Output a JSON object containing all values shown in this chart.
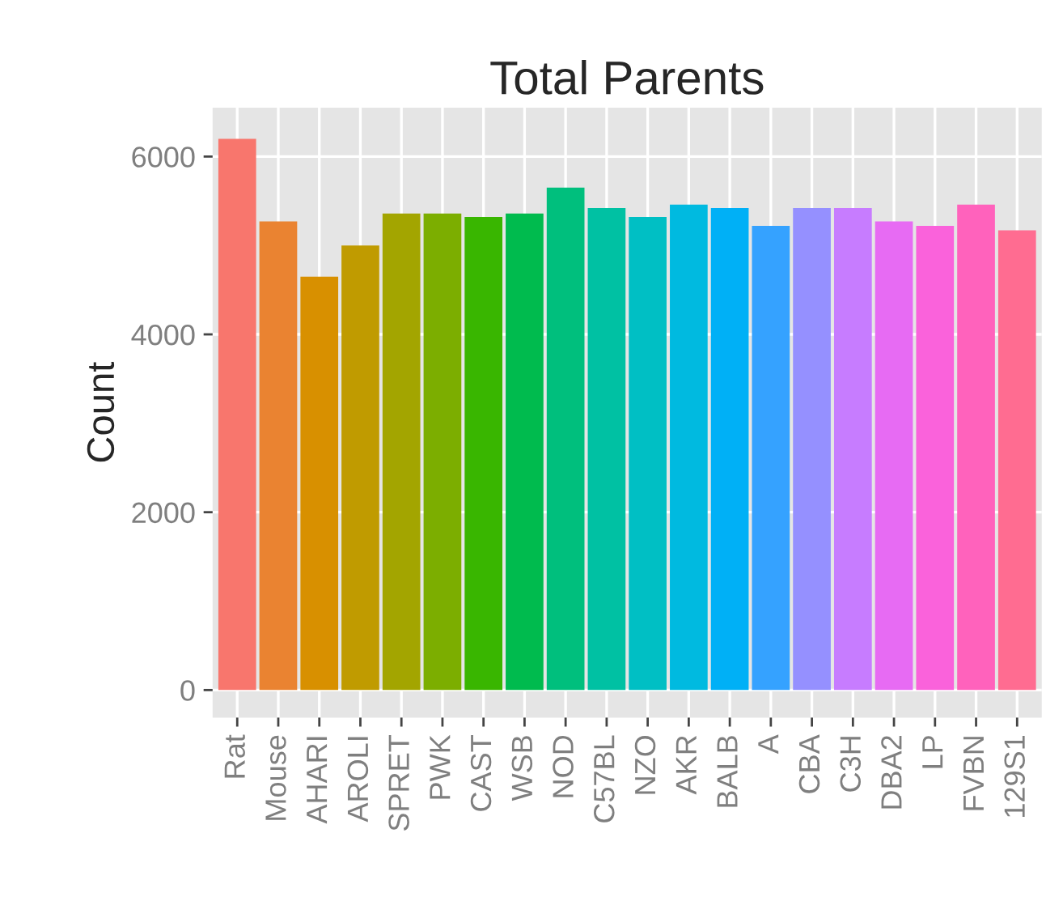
{
  "chart_data": {
    "type": "bar",
    "title": "Total Parents",
    "ylabel": "Count",
    "categories": [
      "Rat",
      "Mouse",
      "AHARI",
      "AROLI",
      "SPRET",
      "PWK",
      "CAST",
      "WSB",
      "NOD",
      "C57BL",
      "NZO",
      "AKR",
      "BALB",
      "A",
      "CBA",
      "C3H",
      "DBA2",
      "LP",
      "FVBN",
      "129S1"
    ],
    "values": [
      6200,
      5270,
      4650,
      5000,
      5360,
      5360,
      5320,
      5360,
      5650,
      5420,
      5320,
      5460,
      5420,
      5220,
      5420,
      5420,
      5270,
      5220,
      5460,
      5170
    ],
    "colors": [
      "#F8766D",
      "#EA8331",
      "#D89000",
      "#C09B00",
      "#A3A500",
      "#7CAE00",
      "#39B600",
      "#00BB4E",
      "#00BF7D",
      "#00C1A3",
      "#00BFC4",
      "#00BAE0",
      "#00B0F6",
      "#35A2FF",
      "#9590FF",
      "#C77CFF",
      "#E76BF3",
      "#FA62DB",
      "#FF62BC",
      "#FF6C91"
    ],
    "ylim": [
      -310,
      6550
    ],
    "yticks": [
      0,
      2000,
      4000,
      6000
    ],
    "grid": true,
    "legend": false
  }
}
